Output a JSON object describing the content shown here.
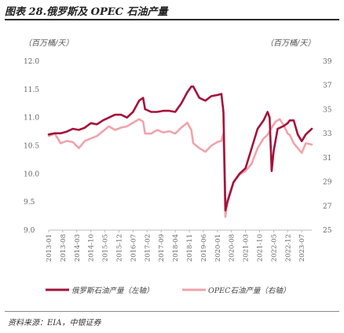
{
  "title": "图表 28.俄罗斯及 OPEC 石油产量",
  "source": "资料来源：EIA，中银证券",
  "colors": {
    "russia": "#a3123a",
    "opec": "#f0a3ac",
    "rule": "#2b2b2b",
    "axis": "#bbbbbb"
  },
  "chart_data": {
    "type": "line",
    "left_unit": "（百万桶/天）",
    "right_unit": "（百万桶/天）",
    "left_axis": {
      "ylim": [
        9.0,
        12.0
      ],
      "ticks": [
        "12.0",
        "11.5",
        "11.0",
        "10.5",
        "10.0",
        "9.5",
        "9.0"
      ]
    },
    "right_axis": {
      "ylim": [
        25,
        39
      ],
      "ticks": [
        "39",
        "37",
        "35",
        "33",
        "31",
        "29",
        "27",
        "25"
      ]
    },
    "x_ticks": [
      "2013-01",
      "2013-08",
      "2014-03",
      "2014-10",
      "2015-05",
      "2015-12",
      "2016-07",
      "2017-02",
      "2017-09",
      "2018-04",
      "2018-11",
      "2019-06",
      "2020-01",
      "2020-08",
      "2021-03",
      "2021-10",
      "2022-05",
      "2022-12",
      "2023-07"
    ],
    "x_range": [
      "2013-01",
      "2023-12"
    ],
    "grid": false,
    "legend_position": "bottom",
    "series": [
      {
        "name": "俄罗斯石油产量（左轴）",
        "axis": "left",
        "x": [
          "2013-01",
          "2013-04",
          "2013-07",
          "2013-10",
          "2014-01",
          "2014-04",
          "2014-07",
          "2014-10",
          "2015-01",
          "2015-04",
          "2015-07",
          "2015-10",
          "2016-01",
          "2016-04",
          "2016-07",
          "2016-10",
          "2016-12",
          "2017-01",
          "2017-04",
          "2017-07",
          "2017-10",
          "2018-01",
          "2018-04",
          "2018-07",
          "2018-10",
          "2018-12",
          "2019-01",
          "2019-04",
          "2019-07",
          "2019-10",
          "2020-01",
          "2020-03",
          "2020-04",
          "2020-05",
          "2020-06",
          "2020-09",
          "2020-12",
          "2021-03",
          "2021-06",
          "2021-09",
          "2021-12",
          "2022-02",
          "2022-03",
          "2022-04",
          "2022-05",
          "2022-07",
          "2022-10",
          "2022-12",
          "2023-01",
          "2023-03",
          "2023-05",
          "2023-07",
          "2023-09",
          "2023-12"
        ],
        "values": [
          10.7,
          10.72,
          10.72,
          10.75,
          10.8,
          10.78,
          10.82,
          10.9,
          10.88,
          10.95,
          11.0,
          11.05,
          11.05,
          11.0,
          11.1,
          11.3,
          11.35,
          11.15,
          11.1,
          11.1,
          11.12,
          11.12,
          11.1,
          11.25,
          11.45,
          11.55,
          11.55,
          11.35,
          11.3,
          11.38,
          11.4,
          11.42,
          11.1,
          9.35,
          9.5,
          9.85,
          10.0,
          10.1,
          10.45,
          10.8,
          10.95,
          11.1,
          11.0,
          10.05,
          10.4,
          10.8,
          10.85,
          10.9,
          10.95,
          10.95,
          10.7,
          10.58,
          10.7,
          10.8
        ]
      },
      {
        "name": "OPEC石油产量（右轴）",
        "axis": "right",
        "x": [
          "2013-01",
          "2013-04",
          "2013-07",
          "2013-10",
          "2014-01",
          "2014-04",
          "2014-07",
          "2014-10",
          "2015-01",
          "2015-04",
          "2015-07",
          "2015-10",
          "2016-01",
          "2016-04",
          "2016-07",
          "2016-10",
          "2016-12",
          "2017-01",
          "2017-04",
          "2017-07",
          "2017-10",
          "2018-01",
          "2018-04",
          "2018-07",
          "2018-10",
          "2018-12",
          "2019-01",
          "2019-04",
          "2019-07",
          "2019-10",
          "2020-01",
          "2020-03",
          "2020-04",
          "2020-05",
          "2020-06",
          "2020-09",
          "2020-12",
          "2021-03",
          "2021-06",
          "2021-09",
          "2021-12",
          "2022-02",
          "2022-04",
          "2022-06",
          "2022-08",
          "2022-10",
          "2022-12",
          "2023-01",
          "2023-03",
          "2023-05",
          "2023-07",
          "2023-09",
          "2023-12"
        ],
        "values": [
          32.8,
          33.0,
          32.2,
          32.4,
          32.3,
          31.8,
          32.4,
          32.6,
          32.8,
          33.2,
          33.6,
          33.3,
          33.5,
          33.6,
          33.9,
          34.2,
          34.0,
          33.0,
          33.0,
          33.3,
          33.1,
          33.2,
          33.0,
          33.5,
          33.9,
          33.3,
          32.2,
          31.8,
          31.5,
          32.0,
          32.3,
          32.4,
          33.0,
          26.1,
          27.5,
          29.0,
          29.6,
          29.9,
          30.5,
          31.8,
          32.6,
          32.9,
          33.5,
          34.0,
          34.2,
          33.7,
          33.0,
          32.9,
          32.2,
          31.8,
          31.4,
          32.2,
          32.1
        ]
      }
    ]
  }
}
